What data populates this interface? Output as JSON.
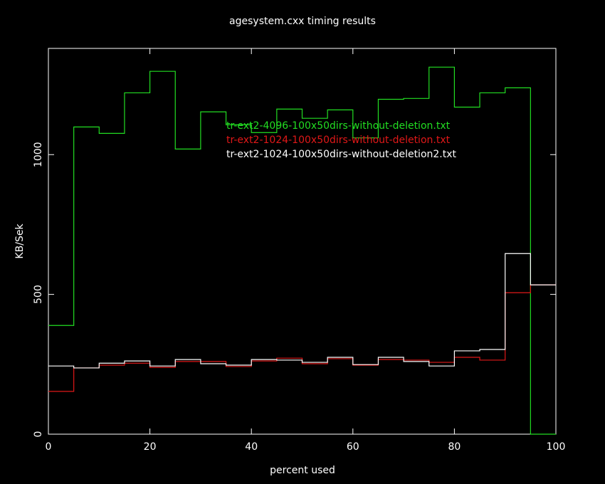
{
  "chart_data": {
    "type": "step",
    "title": "agesystem.cxx timing results",
    "xlabel": "percent used",
    "ylabel": "KB/Sek",
    "x": [
      0,
      5,
      10,
      15,
      20,
      25,
      30,
      35,
      40,
      45,
      50,
      55,
      60,
      65,
      70,
      75,
      80,
      85,
      90,
      95
    ],
    "series": [
      {
        "name": "tr-ext2-4096-100x50dirs-without-deletion.txt",
        "color": "#22dd22",
        "values": [
          389,
          1099,
          1076,
          1221,
          1298,
          1020,
          1153,
          1107,
          1079,
          1163,
          1130,
          1160,
          1060,
          1198,
          1201,
          1313,
          1170,
          1221,
          1239,
          0
        ]
      },
      {
        "name": "tr-ext2-1024-100x50dirs-without-deletion.txt",
        "color": "#e01818",
        "values": [
          153,
          237,
          247,
          254,
          239,
          260,
          260,
          242,
          262,
          272,
          252,
          270,
          247,
          267,
          265,
          257,
          275,
          265,
          506,
          534
        ]
      },
      {
        "name": "tr-ext2-1024-100x50dirs-without-deletion2.txt",
        "color": "#ffffff",
        "values": [
          244,
          237,
          254,
          262,
          244,
          267,
          252,
          247,
          267,
          265,
          257,
          275,
          249,
          275,
          260,
          244,
          298,
          303,
          646,
          534
        ]
      }
    ],
    "xlim": [
      0,
      100
    ],
    "xticks": [
      0,
      20,
      40,
      60,
      80,
      100
    ],
    "ylim": [
      0,
      1380
    ],
    "yticks": [
      0,
      500,
      1000
    ]
  }
}
